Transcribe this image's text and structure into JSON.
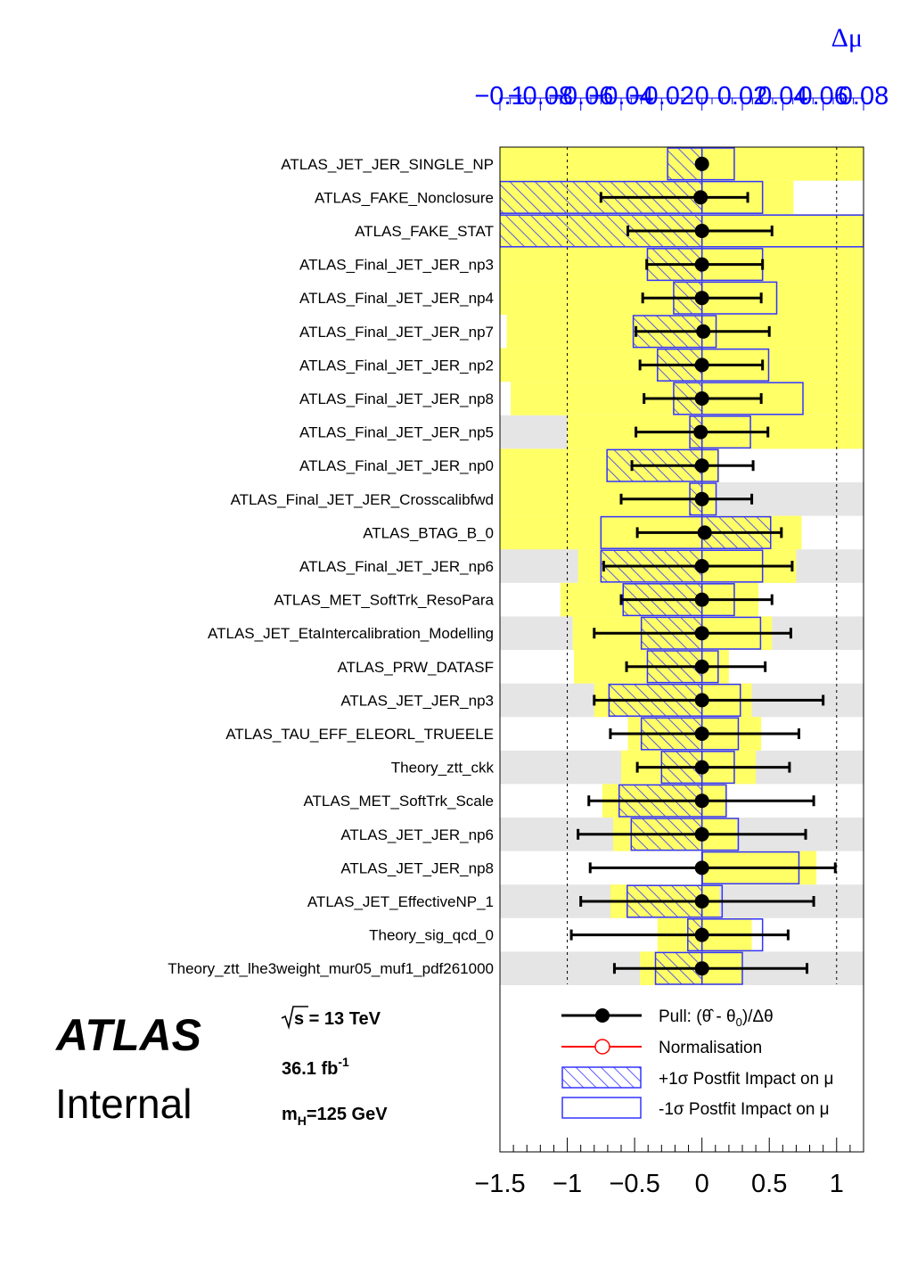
{
  "chart_data": {
    "type": "pull-ranking",
    "x_axis": {
      "range": [
        -1.5,
        1.2
      ],
      "ticks": [
        "−1.5",
        "−1",
        "−0.5",
        "0",
        "0.5",
        "1"
      ],
      "tick_values": [
        -1.5,
        -1,
        -0.5,
        0,
        0.5,
        1
      ]
    },
    "top_axis": {
      "label": "Δμ",
      "range": [
        -0.1,
        0.08
      ],
      "ticks": [
        "−0.1",
        "−0.08",
        "−0.06",
        "−0.04",
        "−0.02",
        "0",
        "0.02",
        "0.04",
        "0.06",
        "0.08"
      ],
      "tick_values": [
        -0.1,
        -0.08,
        -0.06,
        -0.04,
        -0.02,
        0,
        0.02,
        0.04,
        0.06,
        0.08
      ]
    },
    "colors": {
      "prefit_band": "#ffff66",
      "impact_box": "#3333ff",
      "pull_marker": "#000000",
      "normalisation": "#ff0000",
      "stripe": "#e5e5e5"
    },
    "nuisance_parameters": [
      {
        "name": "ATLAS_JET_JER_SINGLE_NP",
        "pull": 0.0,
        "err_lo": 0.0,
        "err_hi": 0.0,
        "impact_plus": -0.017,
        "impact_minus": 0.016,
        "band": [
          -1.5,
          1.2
        ]
      },
      {
        "name": "ATLAS_FAKE_Nonclosure",
        "pull": -0.01,
        "err_lo": 0.74,
        "err_hi": 0.35,
        "impact_plus": -0.1,
        "impact_minus": 0.03,
        "band": [
          -1.5,
          0.68
        ]
      },
      {
        "name": "ATLAS_FAKE_STAT",
        "pull": 0.0,
        "err_lo": 0.55,
        "err_hi": 0.52,
        "impact_plus": -0.1,
        "impact_minus": 0.08,
        "band": [
          -1.5,
          1.2
        ]
      },
      {
        "name": "ATLAS_Final_JET_JER_np3",
        "pull": 0.0,
        "err_lo": 0.41,
        "err_hi": 0.45,
        "impact_plus": -0.027,
        "impact_minus": 0.03,
        "band": [
          -1.5,
          1.2
        ]
      },
      {
        "name": "ATLAS_Final_JET_JER_np4",
        "pull": 0.0,
        "err_lo": 0.44,
        "err_hi": 0.44,
        "impact_plus": -0.014,
        "impact_minus": 0.037,
        "band": [
          -1.5,
          1.2
        ]
      },
      {
        "name": "ATLAS_Final_JET_JER_np7",
        "pull": 0.01,
        "err_lo": 0.5,
        "err_hi": 0.49,
        "impact_plus": -0.034,
        "impact_minus": 0.007,
        "band": [
          -1.45,
          1.2
        ]
      },
      {
        "name": "ATLAS_Final_JET_JER_np2",
        "pull": 0.0,
        "err_lo": 0.46,
        "err_hi": 0.45,
        "impact_plus": -0.022,
        "impact_minus": 0.033,
        "band": [
          -1.5,
          1.2
        ]
      },
      {
        "name": "ATLAS_Final_JET_JER_np8",
        "pull": 0.0,
        "err_lo": 0.43,
        "err_hi": 0.44,
        "impact_plus": -0.014,
        "impact_minus": 0.05,
        "band": [
          -1.42,
          1.2
        ]
      },
      {
        "name": "ATLAS_Final_JET_JER_np5",
        "pull": -0.01,
        "err_lo": 0.48,
        "err_hi": 0.5,
        "impact_plus": -0.006,
        "impact_minus": 0.024,
        "band": [
          -1.0,
          1.2
        ]
      },
      {
        "name": "ATLAS_Final_JET_JER_np0",
        "pull": 0.0,
        "err_lo": 0.52,
        "err_hi": 0.38,
        "impact_plus": -0.047,
        "impact_minus": 0.008,
        "band": [
          -1.5,
          0.13
        ]
      },
      {
        "name": "ATLAS_Final_JET_JER_Crosscalibfwd",
        "pull": 0.0,
        "err_lo": 0.6,
        "err_hi": 0.37,
        "impact_plus": -0.006,
        "impact_minus": 0.007,
        "band": [
          -1.5,
          0.1
        ]
      },
      {
        "name": "ATLAS_BTAG_B_0",
        "pull": 0.02,
        "err_lo": 0.5,
        "err_hi": 0.57,
        "impact_plus": 0.034,
        "impact_minus": -0.05,
        "band": [
          -1.5,
          0.74
        ]
      },
      {
        "name": "ATLAS_Final_JET_JER_np6",
        "pull": 0.0,
        "err_lo": 0.73,
        "err_hi": 0.67,
        "impact_plus": -0.05,
        "impact_minus": 0.03,
        "band": [
          -0.92,
          0.7
        ]
      },
      {
        "name": "ATLAS_MET_SoftTrk_ResoPara",
        "pull": 0.0,
        "err_lo": 0.6,
        "err_hi": 0.52,
        "impact_plus": -0.039,
        "impact_minus": 0.016,
        "band": [
          -1.05,
          0.42
        ]
      },
      {
        "name": "ATLAS_JET_EtaIntercalibration_Modelling",
        "pull": 0.0,
        "err_lo": 0.8,
        "err_hi": 0.66,
        "impact_plus": -0.03,
        "impact_minus": 0.029,
        "band": [
          -0.96,
          0.52
        ]
      },
      {
        "name": "ATLAS_PRW_DATASF",
        "pull": 0.0,
        "err_lo": 0.56,
        "err_hi": 0.47,
        "impact_plus": -0.027,
        "impact_minus": 0.008,
        "band": [
          -0.95,
          0.2
        ]
      },
      {
        "name": "ATLAS_JET_JER_np3",
        "pull": 0.0,
        "err_lo": 0.8,
        "err_hi": 0.9,
        "impact_plus": -0.046,
        "impact_minus": 0.019,
        "band": [
          -0.8,
          0.37
        ]
      },
      {
        "name": "ATLAS_TAU_EFF_ELEORL_TRUEELE",
        "pull": 0.0,
        "err_lo": 0.68,
        "err_hi": 0.72,
        "impact_plus": -0.03,
        "impact_minus": 0.018,
        "band": [
          -0.55,
          0.44
        ]
      },
      {
        "name": "Theory_ztt_ckk",
        "pull": 0.0,
        "err_lo": 0.48,
        "err_hi": 0.65,
        "impact_plus": -0.02,
        "impact_minus": 0.016,
        "band": [
          -0.6,
          0.4
        ]
      },
      {
        "name": "ATLAS_MET_SoftTrk_Scale",
        "pull": 0.0,
        "err_lo": 0.84,
        "err_hi": 0.83,
        "impact_plus": -0.041,
        "impact_minus": 0.012,
        "band": [
          -0.74,
          0.18
        ]
      },
      {
        "name": "ATLAS_JET_JER_np6",
        "pull": 0.0,
        "err_lo": 0.92,
        "err_hi": 0.77,
        "impact_plus": -0.035,
        "impact_minus": 0.018,
        "band": [
          -0.66,
          0.26
        ]
      },
      {
        "name": "ATLAS_JET_JER_np8",
        "pull": 0.0,
        "err_lo": 0.83,
        "err_hi": 0.99,
        "impact_plus": 0.0,
        "impact_minus": 0.048,
        "band": [
          0.0,
          0.85
        ]
      },
      {
        "name": "ATLAS_JET_EffectiveNP_1",
        "pull": 0.0,
        "err_lo": 0.9,
        "err_hi": 0.83,
        "impact_plus": -0.037,
        "impact_minus": 0.01,
        "band": [
          -0.68,
          0.13
        ]
      },
      {
        "name": "Theory_sig_qcd_0",
        "pull": 0.0,
        "err_lo": 0.97,
        "err_hi": 0.64,
        "impact_plus": -0.007,
        "impact_minus": 0.03,
        "band": [
          -0.33,
          0.37
        ]
      },
      {
        "name": "Theory_ztt_lhe3weight_mur05_muf1_pdf261000",
        "pull": 0.0,
        "err_lo": 0.65,
        "err_hi": 0.78,
        "impact_plus": -0.023,
        "impact_minus": 0.02,
        "band": [
          -0.46,
          0.3
        ]
      }
    ],
    "legend": {
      "items": [
        {
          "key": "pull",
          "label_parts": [
            "Pull: (",
            "θ̂",
            " - θ",
            "0",
            ")/Δθ"
          ]
        },
        {
          "key": "norm",
          "label": "Normalisation"
        },
        {
          "key": "plus",
          "label": "+1σ Postfit Impact on μ"
        },
        {
          "key": "minus",
          "label": "-1σ Postfit Impact on μ"
        }
      ]
    }
  },
  "atlas": {
    "logo": "ATLAS",
    "status": "Internal",
    "sqrt_s": "s = 13 TeV",
    "lumi_base": "36.1 fb",
    "lumi_exp": "-1",
    "mass_m": "m",
    "mass_sub": "H",
    "mass_rest": "=125 GeV"
  }
}
